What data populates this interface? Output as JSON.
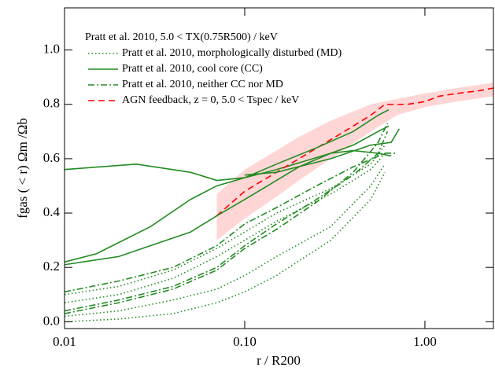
{
  "chart_data": {
    "type": "line",
    "xlabel": "r / R200",
    "ylabel": "fgas ( < r) Ωm /Ωb",
    "legend_title": "Pratt et al. 2010, 5.0 < TX(0.75R500) / keV",
    "xscale": "log",
    "xlim": [
      0.01,
      2.4
    ],
    "ylim": [
      -0.025,
      1.155
    ],
    "xticks": [
      0.01,
      {
        "value": 0.1,
        "label": "0.10"
      },
      {
        "value": 1,
        "label": "1.00"
      }
    ],
    "yticks": [
      {
        "value": 0,
        "label": "0.0"
      },
      0.2,
      0.4,
      0.6,
      0.8,
      {
        "value": 1,
        "label": "1.0"
      }
    ],
    "band": {
      "color": "#ffd6d6",
      "x": [
        0.07,
        0.1,
        0.15,
        0.2,
        0.3,
        0.5,
        0.7,
        1.0,
        1.5,
        2.4
      ],
      "lower": [
        0.3,
        0.38,
        0.46,
        0.52,
        0.6,
        0.7,
        0.76,
        0.79,
        0.81,
        0.83
      ],
      "upper": [
        0.47,
        0.56,
        0.63,
        0.68,
        0.74,
        0.8,
        0.82,
        0.84,
        0.86,
        0.88
      ]
    },
    "series": [
      {
        "name": "Pratt et al. 2010, morphologically disturbed (MD)",
        "color": "#228b22",
        "style": "dotted",
        "x": [
          0.01,
          0.02,
          0.04,
          0.07,
          0.1,
          0.15,
          0.3,
          0.5,
          0.6
        ],
        "values": [
          0.1,
          0.13,
          0.19,
          0.27,
          0.33,
          0.4,
          0.49,
          0.58,
          0.65
        ]
      },
      {
        "name": "Pratt et al. 2010, cool core (CC)",
        "color": "#228b22",
        "style": "solid",
        "x": [
          0.01,
          0.025,
          0.05,
          0.07,
          0.1,
          0.15,
          0.3,
          0.4,
          0.55,
          0.63
        ],
        "values": [
          0.56,
          0.58,
          0.55,
          0.52,
          0.53,
          0.56,
          0.62,
          0.65,
          0.7,
          0.72
        ]
      },
      {
        "name": "Pratt et al. 2010, neither CC nor MD",
        "color": "#228b22",
        "style": "dashdot",
        "x": [
          0.01,
          0.02,
          0.04,
          0.07,
          0.1,
          0.15,
          0.25,
          0.4,
          0.6,
          0.7
        ],
        "values": [
          0.11,
          0.15,
          0.2,
          0.28,
          0.36,
          0.42,
          0.5,
          0.57,
          0.62,
          0.62
        ]
      },
      {
        "name": "AGN feedback, z = 0, 5.0 < Tspec / keV",
        "color": "#ff0000",
        "style": "dashed",
        "x": [
          0.07,
          0.1,
          0.15,
          0.2,
          0.3,
          0.4,
          0.5,
          0.6,
          0.8,
          1.0,
          1.2,
          1.5,
          2.0,
          2.4
        ],
        "values": [
          0.39,
          0.48,
          0.55,
          0.6,
          0.67,
          0.72,
          0.76,
          0.8,
          0.8,
          0.81,
          0.83,
          0.84,
          0.85,
          0.86
        ]
      },
      {
        "color": "#228b22",
        "style": "solid",
        "x": [
          0.01,
          0.015,
          0.03,
          0.05,
          0.07,
          0.1,
          0.15,
          0.25,
          0.4,
          0.55,
          0.63
        ],
        "values": [
          0.22,
          0.25,
          0.35,
          0.45,
          0.5,
          0.53,
          0.58,
          0.64,
          0.7,
          0.76,
          0.78
        ]
      },
      {
        "color": "#228b22",
        "style": "solid",
        "x": [
          0.01,
          0.02,
          0.03,
          0.05,
          0.07,
          0.1,
          0.15,
          0.2,
          0.3,
          0.4,
          0.55,
          0.65
        ],
        "values": [
          0.21,
          0.24,
          0.28,
          0.33,
          0.39,
          0.45,
          0.52,
          0.57,
          0.62,
          0.63,
          0.62,
          0.61
        ]
      },
      {
        "color": "#228b22",
        "style": "solid",
        "x": [
          0.1,
          0.15,
          0.3,
          0.5,
          0.65,
          0.72
        ],
        "values": [
          0.54,
          0.55,
          0.6,
          0.65,
          0.66,
          0.71
        ]
      },
      {
        "color": "#228b22",
        "style": "dashdot",
        "x": [
          0.01,
          0.02,
          0.04,
          0.07,
          0.1,
          0.15,
          0.25,
          0.4,
          0.55,
          0.62
        ],
        "values": [
          0.04,
          0.08,
          0.13,
          0.2,
          0.28,
          0.36,
          0.45,
          0.54,
          0.62,
          0.7
        ]
      },
      {
        "color": "#228b22",
        "style": "dashdot",
        "x": [
          0.01,
          0.02,
          0.04,
          0.07,
          0.1,
          0.15,
          0.25,
          0.4,
          0.55,
          0.62
        ],
        "values": [
          0.03,
          0.07,
          0.12,
          0.19,
          0.27,
          0.34,
          0.44,
          0.55,
          0.66,
          0.73
        ]
      },
      {
        "color": "#228b22",
        "style": "dotted",
        "x": [
          0.01,
          0.02,
          0.04,
          0.07,
          0.1,
          0.15,
          0.3,
          0.5,
          0.6
        ],
        "values": [
          0.07,
          0.1,
          0.16,
          0.24,
          0.3,
          0.37,
          0.47,
          0.56,
          0.62
        ]
      },
      {
        "color": "#228b22",
        "style": "dotted",
        "x": [
          0.01,
          0.02,
          0.04,
          0.07,
          0.1,
          0.15,
          0.3,
          0.5,
          0.6
        ],
        "values": [
          0.02,
          0.04,
          0.08,
          0.12,
          0.17,
          0.24,
          0.35,
          0.5,
          0.58
        ]
      },
      {
        "color": "#228b22",
        "style": "dotted",
        "x": [
          0.01,
          0.02,
          0.04,
          0.07,
          0.1,
          0.15,
          0.3,
          0.5,
          0.6
        ],
        "values": [
          0,
          0.01,
          0.03,
          0.07,
          0.11,
          0.17,
          0.3,
          0.45,
          0.55
        ]
      }
    ]
  }
}
